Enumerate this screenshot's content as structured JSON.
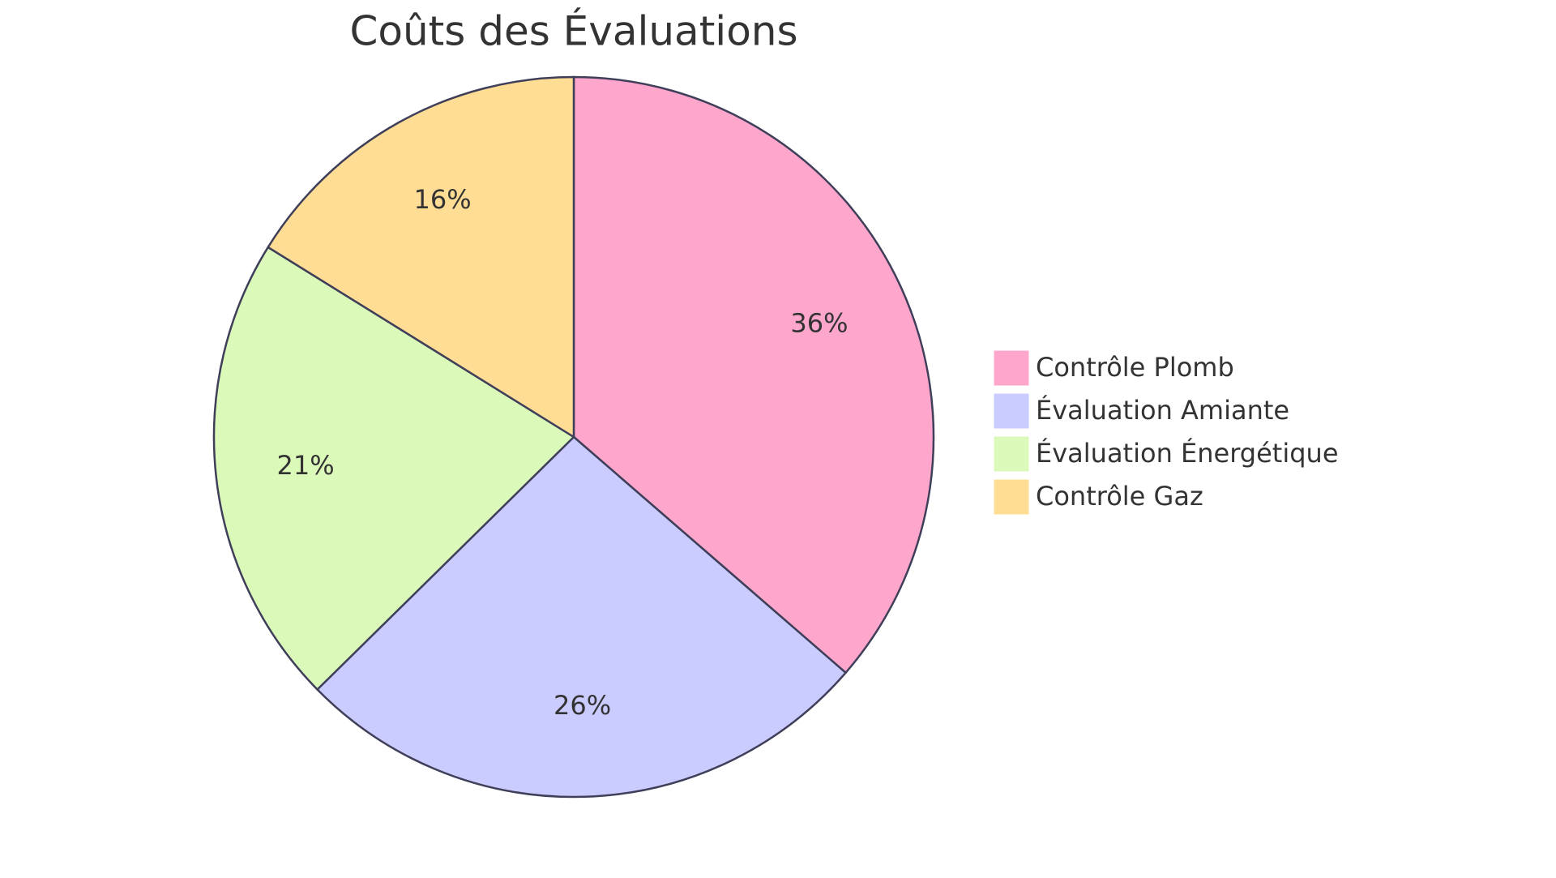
{
  "chart_data": {
    "type": "pie",
    "title": "Coûts des Évaluations",
    "categories": [
      "Contrôle Plomb",
      "Évaluation Amiante",
      "Évaluation Énergétique",
      "Contrôle Gaz"
    ],
    "values": [
      36,
      26,
      21,
      16
    ],
    "value_labels": [
      "36%",
      "26%",
      "21%",
      "16%"
    ],
    "colors": [
      "#ffa6cc",
      "#cacbff",
      "#dbf9b9",
      "#ffdd94"
    ],
    "legend": "right"
  }
}
